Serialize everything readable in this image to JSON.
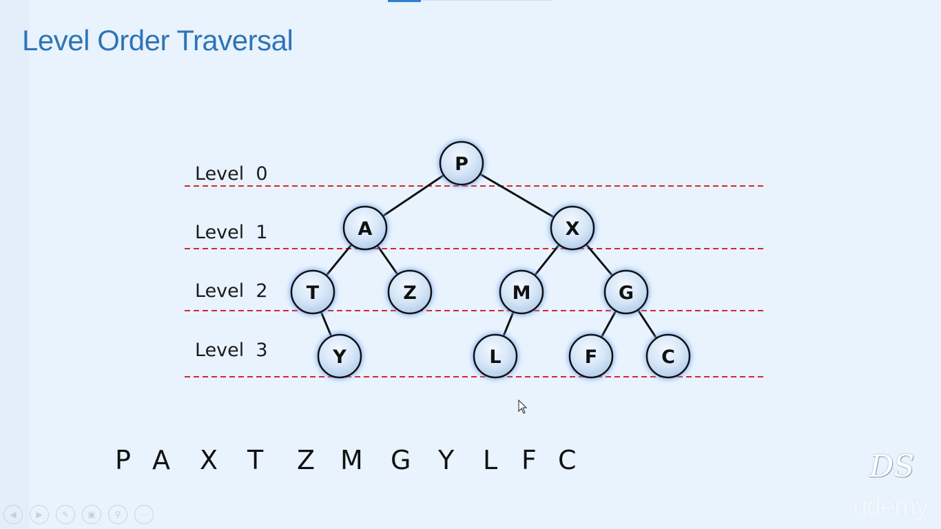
{
  "slide": {
    "title": "Level Order Traversal"
  },
  "levels": [
    {
      "label": "Level  0"
    },
    {
      "label": "Level  1"
    },
    {
      "label": "Level  2"
    },
    {
      "label": "Level  3"
    }
  ],
  "tree": {
    "nodes": [
      {
        "id": "P",
        "label": "P",
        "level": 0
      },
      {
        "id": "A",
        "label": "A",
        "level": 1
      },
      {
        "id": "X",
        "label": "X",
        "level": 1
      },
      {
        "id": "T",
        "label": "T",
        "level": 2
      },
      {
        "id": "Z",
        "label": "Z",
        "level": 2
      },
      {
        "id": "M",
        "label": "M",
        "level": 2
      },
      {
        "id": "G",
        "label": "G",
        "level": 2
      },
      {
        "id": "Y",
        "label": "Y",
        "level": 3
      },
      {
        "id": "L",
        "label": "L",
        "level": 3
      },
      {
        "id": "F",
        "label": "F",
        "level": 3
      },
      {
        "id": "C",
        "label": "C",
        "level": 3
      }
    ],
    "edges": [
      [
        "P",
        "A"
      ],
      [
        "P",
        "X"
      ],
      [
        "A",
        "T"
      ],
      [
        "A",
        "Z"
      ],
      [
        "X",
        "M"
      ],
      [
        "X",
        "G"
      ],
      [
        "T",
        "Y"
      ],
      [
        "M",
        "L"
      ],
      [
        "G",
        "F"
      ],
      [
        "G",
        "C"
      ]
    ]
  },
  "traversal": [
    "P",
    "A",
    "X",
    "T",
    "Z",
    "M",
    "G",
    "Y",
    "L",
    "F",
    "C"
  ],
  "branding": {
    "logo_text": "DS",
    "udemy_text": "udemy"
  },
  "toolbar": {
    "buttons": [
      {
        "icon": "previous-icon"
      },
      {
        "icon": "next-icon"
      },
      {
        "icon": "pen-icon"
      },
      {
        "icon": "slides-icon"
      },
      {
        "icon": "zoom-icon"
      },
      {
        "icon": "more-icon"
      }
    ]
  },
  "colors": {
    "title": "#2f74b5",
    "background": "#e8f3fd",
    "level_line": "#d9222a",
    "node_fill": "#d6e6f8",
    "node_glow": "#7aa6f0",
    "edge": "#111111"
  }
}
